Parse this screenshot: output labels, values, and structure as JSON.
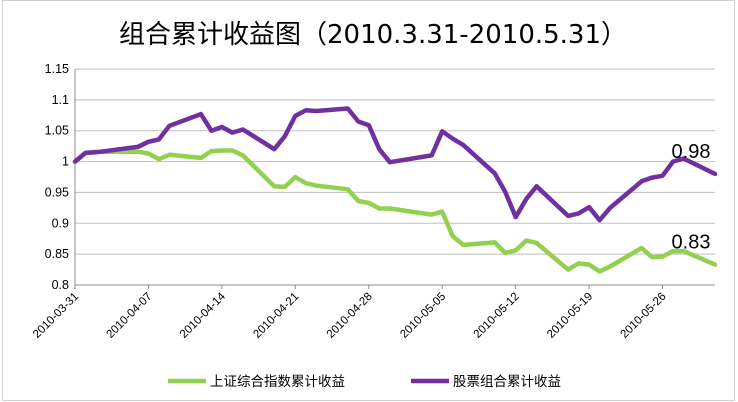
{
  "chart_data": {
    "type": "line",
    "title": "组合累计收益图（2010.3.31-2010.5.31）",
    "xlabel": "",
    "ylabel": "",
    "ylim": [
      0.8,
      1.15
    ],
    "yticks": [
      "0.8",
      "0.85",
      "0.9",
      "0.95",
      "1",
      "1.05",
      "1.1",
      "1.15"
    ],
    "grid": "horizontal",
    "legend_position": "bottom",
    "x_tick_labels": [
      "2010-03-31",
      "2010-04-07",
      "2010-04-14",
      "2010-04-21",
      "2010-04-28",
      "2010-05-05",
      "2010-05-12",
      "2010-05-19",
      "2010-05-26"
    ],
    "x": [
      "2010-03-31",
      "2010-04-01",
      "2010-04-02",
      "2010-04-06",
      "2010-04-07",
      "2010-04-08",
      "2010-04-09",
      "2010-04-12",
      "2010-04-13",
      "2010-04-14",
      "2010-04-15",
      "2010-04-16",
      "2010-04-19",
      "2010-04-20",
      "2010-04-21",
      "2010-04-22",
      "2010-04-23",
      "2010-04-26",
      "2010-04-27",
      "2010-04-28",
      "2010-04-29",
      "2010-04-30",
      "2010-05-04",
      "2010-05-05",
      "2010-05-06",
      "2010-05-07",
      "2010-05-10",
      "2010-05-11",
      "2010-05-12",
      "2010-05-13",
      "2010-05-14",
      "2010-05-17",
      "2010-05-18",
      "2010-05-19",
      "2010-05-20",
      "2010-05-21",
      "2010-05-24",
      "2010-05-25",
      "2010-05-26",
      "2010-05-27",
      "2010-05-28",
      "2010-05-31"
    ],
    "series": [
      {
        "name": "上证综合指数累计收益",
        "color": "#92d050",
        "values": [
          1.0,
          1.014,
          1.016,
          1.016,
          1.013,
          1.004,
          1.011,
          1.006,
          1.017,
          1.018,
          1.018,
          1.01,
          0.96,
          0.959,
          0.975,
          0.965,
          0.961,
          0.955,
          0.936,
          0.933,
          0.924,
          0.924,
          0.914,
          0.919,
          0.879,
          0.865,
          0.869,
          0.852,
          0.856,
          0.872,
          0.868,
          0.825,
          0.835,
          0.833,
          0.822,
          0.83,
          0.86,
          0.845,
          0.846,
          0.855,
          0.855,
          0.833
        ],
        "end_label": "0.83"
      },
      {
        "name": "股票组合累计收益",
        "color": "#7030a0",
        "values": [
          1.0,
          1.014,
          1.015,
          1.024,
          1.032,
          1.036,
          1.058,
          1.077,
          1.05,
          1.056,
          1.047,
          1.052,
          1.02,
          1.041,
          1.074,
          1.083,
          1.082,
          1.086,
          1.065,
          1.059,
          1.02,
          0.999,
          1.01,
          1.049,
          1.037,
          1.027,
          0.981,
          0.951,
          0.91,
          0.939,
          0.96,
          0.912,
          0.916,
          0.926,
          0.905,
          0.925,
          0.968,
          0.974,
          0.977,
          1.0,
          1.005,
          0.98
        ],
        "end_label": "0.98"
      }
    ]
  }
}
